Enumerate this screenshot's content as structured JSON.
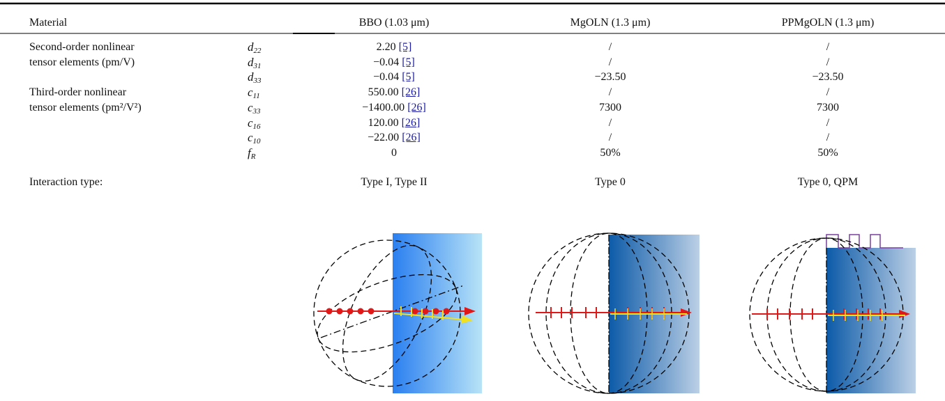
{
  "header": {
    "columns": [
      "Material",
      "BBO (1.03 μm)",
      "MgOLN (1.3 μm)",
      "PPMgOLN (1.3 μm)"
    ]
  },
  "table": {
    "rows": [
      {
        "label": "Second-order nonlinear",
        "symbol": {
          "base": "d",
          "sub": "22"
        },
        "cells": [
          {
            "text": "2.20",
            "ref": "[5]"
          },
          {
            "text": "/"
          },
          {
            "text": "/"
          }
        ]
      },
      {
        "label": "tensor elements (pm/V)",
        "symbol": {
          "base": "d",
          "sub": "31"
        },
        "cells": [
          {
            "text": "−0.04",
            "ref": "[5]"
          },
          {
            "text": "/"
          },
          {
            "text": "/"
          }
        ]
      },
      {
        "symbol": {
          "base": "d",
          "sub": "33"
        },
        "cells": [
          {
            "text": "−0.04",
            "ref": "[5]"
          },
          {
            "text": "−23.50"
          },
          {
            "text": "−23.50"
          }
        ]
      },
      {
        "label": "Third-order nonlinear",
        "symbol": {
          "base": "c",
          "sub": "11"
        },
        "cells": [
          {
            "text": "550.00",
            "ref": "[26]"
          },
          {
            "text": "/"
          },
          {
            "text": "/"
          }
        ]
      },
      {
        "label": "tensor elements (pm²/V²)",
        "symbol": {
          "base": "c",
          "sub": "33"
        },
        "cells": [
          {
            "text": "−1400.00",
            "ref": "[26]"
          },
          {
            "text": "7300"
          },
          {
            "text": "7300"
          }
        ]
      },
      {
        "symbol": {
          "base": "c",
          "sub": "16"
        },
        "cells": [
          {
            "text": "120.00",
            "ref": "[26]"
          },
          {
            "text": "/"
          },
          {
            "text": "/"
          }
        ]
      },
      {
        "symbol": {
          "base": "c",
          "sub": "10"
        },
        "cells": [
          {
            "text": "−22.00",
            "ref": "[26]"
          },
          {
            "text": "/"
          },
          {
            "text": "/"
          }
        ]
      },
      {
        "symbol": {
          "base": "f",
          "sub": "R"
        },
        "cells": [
          {
            "text": "0"
          },
          {
            "text": "50%"
          },
          {
            "text": "50%"
          }
        ]
      }
    ]
  },
  "interaction": {
    "label": "Interaction type:",
    "cells": [
      "Type I, Type II",
      "Type 0",
      "Type 0, QPM"
    ]
  }
}
